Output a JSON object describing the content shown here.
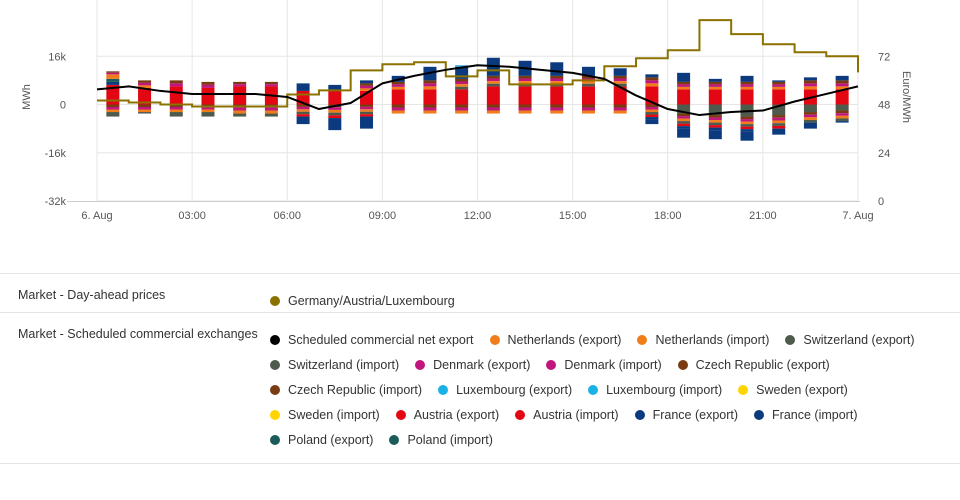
{
  "chart_data": {
    "type": "bar",
    "x_tick_labels": [
      "6. Aug",
      "03:00",
      "06:00",
      "09:00",
      "12:00",
      "15:00",
      "18:00",
      "21:00",
      "7. Aug"
    ],
    "y_left": {
      "title": "MWh",
      "ticks": [
        "16k",
        "0",
        "-16k",
        "-32k"
      ],
      "values": [
        16000,
        0,
        -16000,
        -32000
      ],
      "range": [
        -32000,
        32000
      ]
    },
    "y_right": {
      "title": "Euro/MWh",
      "ticks": [
        "72",
        "48",
        "24",
        "0"
      ],
      "values": [
        72,
        48,
        24,
        0
      ],
      "range": [
        0,
        96
      ]
    },
    "hours": [
      0,
      1,
      2,
      3,
      4,
      5,
      6,
      7,
      8,
      9,
      10,
      11,
      12,
      13,
      14,
      15,
      16,
      17,
      18,
      19,
      20,
      21,
      22,
      23
    ],
    "day_ahead_price": {
      "name": "Germany/Austria/Luxembourg",
      "color": "#8b7100",
      "values": [
        50,
        49,
        48,
        47,
        47,
        47,
        53,
        55,
        65,
        68,
        69,
        62,
        65,
        58,
        58,
        60,
        67,
        71,
        75,
        90,
        83,
        78,
        74,
        72,
        64
      ]
    },
    "net_export": {
      "name": "Scheduled commercial net export",
      "color": "#000000",
      "values": [
        5000,
        6000,
        4500,
        3500,
        3500,
        3500,
        2500,
        -1500,
        500,
        7000,
        9500,
        11500,
        13000,
        12500,
        11500,
        10500,
        8500,
        3000,
        -1500,
        -3500,
        -2500,
        -2000,
        1000,
        3500,
        6000
      ]
    },
    "stacks": [
      {
        "up": [
          {
            "s": "Austria",
            "v": 6500
          },
          {
            "s": "France",
            "v": 1000
          },
          {
            "s": "Poland",
            "v": 1000
          },
          {
            "s": "Netherlands",
            "v": 1500
          },
          {
            "s": "Other",
            "v": 1000
          }
        ],
        "down": [
          {
            "s": "Other",
            "v": 2500
          },
          {
            "s": "Switzerland",
            "v": 1500
          }
        ]
      },
      {
        "up": [
          {
            "s": "Austria",
            "v": 5500
          },
          {
            "s": "Other",
            "v": 2500
          }
        ],
        "down": [
          {
            "s": "Other",
            "v": 2500
          },
          {
            "s": "Switzerland",
            "v": 500
          }
        ]
      },
      {
        "up": [
          {
            "s": "Austria",
            "v": 6000
          },
          {
            "s": "Other",
            "v": 2000
          }
        ],
        "down": [
          {
            "s": "Other",
            "v": 2500
          },
          {
            "s": "Switzerland",
            "v": 1500
          }
        ]
      },
      {
        "up": [
          {
            "s": "Austria",
            "v": 5500
          },
          {
            "s": "Other",
            "v": 2000
          }
        ],
        "down": [
          {
            "s": "Other",
            "v": 2500
          },
          {
            "s": "Switzerland",
            "v": 1500
          }
        ]
      },
      {
        "up": [
          {
            "s": "Austria",
            "v": 6000
          },
          {
            "s": "Other",
            "v": 1500
          }
        ],
        "down": [
          {
            "s": "Other",
            "v": 3000
          },
          {
            "s": "Switzerland",
            "v": 1000
          }
        ]
      },
      {
        "up": [
          {
            "s": "Austria",
            "v": 6000
          },
          {
            "s": "Other",
            "v": 1500
          }
        ],
        "down": [
          {
            "s": "Other",
            "v": 3000
          },
          {
            "s": "Switzerland",
            "v": 1000
          }
        ]
      },
      {
        "up": [
          {
            "s": "Austria",
            "v": 4500
          },
          {
            "s": "France",
            "v": 2500
          }
        ],
        "down": [
          {
            "s": "Other",
            "v": 4000
          },
          {
            "s": "France",
            "v": 2500
          }
        ]
      },
      {
        "up": [
          {
            "s": "Austria",
            "v": 4500
          },
          {
            "s": "France",
            "v": 2000
          }
        ],
        "down": [
          {
            "s": "Other",
            "v": 4500
          },
          {
            "s": "France",
            "v": 4000
          }
        ]
      },
      {
        "up": [
          {
            "s": "Austria",
            "v": 4500
          },
          {
            "s": "Other",
            "v": 2500
          },
          {
            "s": "France",
            "v": 1000
          }
        ],
        "down": [
          {
            "s": "Other",
            "v": 4000
          },
          {
            "s": "France",
            "v": 4000
          }
        ]
      },
      {
        "up": [
          {
            "s": "Austria",
            "v": 5000
          },
          {
            "s": "Other",
            "v": 2500
          },
          {
            "s": "France",
            "v": 2000
          }
        ],
        "down": [
          {
            "s": "Other",
            "v": 3000
          }
        ]
      },
      {
        "up": [
          {
            "s": "Austria",
            "v": 5000
          },
          {
            "s": "Other",
            "v": 3000
          },
          {
            "s": "France",
            "v": 4500
          }
        ],
        "down": [
          {
            "s": "Other",
            "v": 3000
          }
        ]
      },
      {
        "up": [
          {
            "s": "Austria",
            "v": 5000
          },
          {
            "s": "Other",
            "v": 3500
          },
          {
            "s": "France",
            "v": 4000
          },
          {
            "s": "Luxembourg",
            "v": 500
          }
        ],
        "down": [
          {
            "s": "Other",
            "v": 3000
          }
        ]
      },
      {
        "up": [
          {
            "s": "Austria",
            "v": 6000
          },
          {
            "s": "Other",
            "v": 3500
          },
          {
            "s": "France",
            "v": 6000
          }
        ],
        "down": [
          {
            "s": "Other",
            "v": 3000
          }
        ]
      },
      {
        "up": [
          {
            "s": "Austria",
            "v": 6000
          },
          {
            "s": "Other",
            "v": 3500
          },
          {
            "s": "France",
            "v": 5000
          }
        ],
        "down": [
          {
            "s": "Other",
            "v": 3000
          }
        ]
      },
      {
        "up": [
          {
            "s": "Austria",
            "v": 6000
          },
          {
            "s": "Other",
            "v": 3500
          },
          {
            "s": "France",
            "v": 4500
          }
        ],
        "down": [
          {
            "s": "Other",
            "v": 3000
          }
        ]
      },
      {
        "up": [
          {
            "s": "Austria",
            "v": 6000
          },
          {
            "s": "Other",
            "v": 3500
          },
          {
            "s": "France",
            "v": 3000
          }
        ],
        "down": [
          {
            "s": "Other",
            "v": 3000
          }
        ]
      },
      {
        "up": [
          {
            "s": "Austria",
            "v": 6000
          },
          {
            "s": "Other",
            "v": 3500
          },
          {
            "s": "France",
            "v": 2500
          }
        ],
        "down": [
          {
            "s": "Other",
            "v": 3000
          }
        ]
      },
      {
        "up": [
          {
            "s": "Austria",
            "v": 6000
          },
          {
            "s": "Other",
            "v": 3000
          },
          {
            "s": "France",
            "v": 1000
          }
        ],
        "down": [
          {
            "s": "Other",
            "v": 5000
          },
          {
            "s": "France",
            "v": 1500
          }
        ]
      },
      {
        "up": [
          {
            "s": "Austria",
            "v": 5000
          },
          {
            "s": "Other",
            "v": 2500
          },
          {
            "s": "France",
            "v": 3000
          }
        ],
        "down": [
          {
            "s": "Switzerland",
            "v": 3000
          },
          {
            "s": "Other",
            "v": 5000
          },
          {
            "s": "France",
            "v": 3000
          }
        ]
      },
      {
        "up": [
          {
            "s": "Austria",
            "v": 5000
          },
          {
            "s": "Other",
            "v": 2500
          },
          {
            "s": "France",
            "v": 1000
          }
        ],
        "down": [
          {
            "s": "Switzerland",
            "v": 3500
          },
          {
            "s": "Other",
            "v": 5000
          },
          {
            "s": "France",
            "v": 3000
          }
        ]
      },
      {
        "up": [
          {
            "s": "Austria",
            "v": 5000
          },
          {
            "s": "Other",
            "v": 2500
          },
          {
            "s": "France",
            "v": 2000
          }
        ],
        "down": [
          {
            "s": "Switzerland",
            "v": 4000
          },
          {
            "s": "Other",
            "v": 5000
          },
          {
            "s": "France",
            "v": 3000
          }
        ]
      },
      {
        "up": [
          {
            "s": "Austria",
            "v": 5000
          },
          {
            "s": "Other",
            "v": 2500
          },
          {
            "s": "France",
            "v": 500
          }
        ],
        "down": [
          {
            "s": "Switzerland",
            "v": 3500
          },
          {
            "s": "Other",
            "v": 4500
          },
          {
            "s": "France",
            "v": 2000
          }
        ]
      },
      {
        "up": [
          {
            "s": "Austria",
            "v": 5000
          },
          {
            "s": "Other",
            "v": 3000
          },
          {
            "s": "France",
            "v": 1000
          }
        ],
        "down": [
          {
            "s": "Switzerland",
            "v": 2500
          },
          {
            "s": "Other",
            "v": 3500
          },
          {
            "s": "France",
            "v": 2000
          }
        ]
      },
      {
        "up": [
          {
            "s": "Austria",
            "v": 5000
          },
          {
            "s": "Other",
            "v": 3000
          },
          {
            "s": "France",
            "v": 1500
          }
        ],
        "down": [
          {
            "s": "Switzerland",
            "v": 2000
          },
          {
            "s": "Other",
            "v": 3500
          },
          {
            "s": "France",
            "v": 500
          }
        ]
      }
    ],
    "series_colors": {
      "Austria": "#e30613",
      "France": "#0b3a7e",
      "Poland": "#1a5c5a",
      "Netherlands": "#f07d1a",
      "Switzerland": "#4e5a4c",
      "Luxembourg": "#1f9bd6",
      "Other": "striped"
    },
    "stripe_colors": [
      "#7a3b12",
      "#c0167d",
      "#f07d1a",
      "#4e5a4c",
      "#e30613",
      "#0b3a7e",
      "#1f9bd6",
      "#ffd400"
    ]
  },
  "legend": {
    "row1": {
      "label": "Market - Day-ahead prices",
      "items": [
        {
          "label": "Germany/Austria/Luxembourg",
          "color": "#8b7100"
        }
      ]
    },
    "row2": {
      "label": "Market - Scheduled commercial exchanges",
      "items": [
        {
          "label": "Scheduled commercial net export",
          "color": "#000000"
        },
        {
          "label": "Netherlands (export)",
          "color": "#f07d1a"
        },
        {
          "label": "Netherlands (import)",
          "color": "#f07d1a"
        },
        {
          "label": "Switzerland (export)",
          "color": "#4e5a4c"
        },
        {
          "label": "Switzerland (import)",
          "color": "#4e5a4c"
        },
        {
          "label": "Denmark (export)",
          "color": "#c0167d"
        },
        {
          "label": "Denmark (import)",
          "color": "#c0167d"
        },
        {
          "label": "Czech Republic (export)",
          "color": "#7a3b12"
        },
        {
          "label": "Czech Republic (import)",
          "color": "#7a3b12"
        },
        {
          "label": "Luxembourg (export)",
          "color": "#1ab2e6"
        },
        {
          "label": "Luxembourg (import)",
          "color": "#1ab2e6"
        },
        {
          "label": "Sweden (export)",
          "color": "#ffd400"
        },
        {
          "label": "Sweden (import)",
          "color": "#ffd400"
        },
        {
          "label": "Austria (export)",
          "color": "#e30613"
        },
        {
          "label": "Austria (import)",
          "color": "#e30613"
        },
        {
          "label": "France (export)",
          "color": "#0b3a7e"
        },
        {
          "label": "France (import)",
          "color": "#0b3a7e"
        },
        {
          "label": "Poland (export)",
          "color": "#1a5c5a"
        },
        {
          "label": "Poland (import)",
          "color": "#1a5c5a"
        }
      ]
    }
  }
}
